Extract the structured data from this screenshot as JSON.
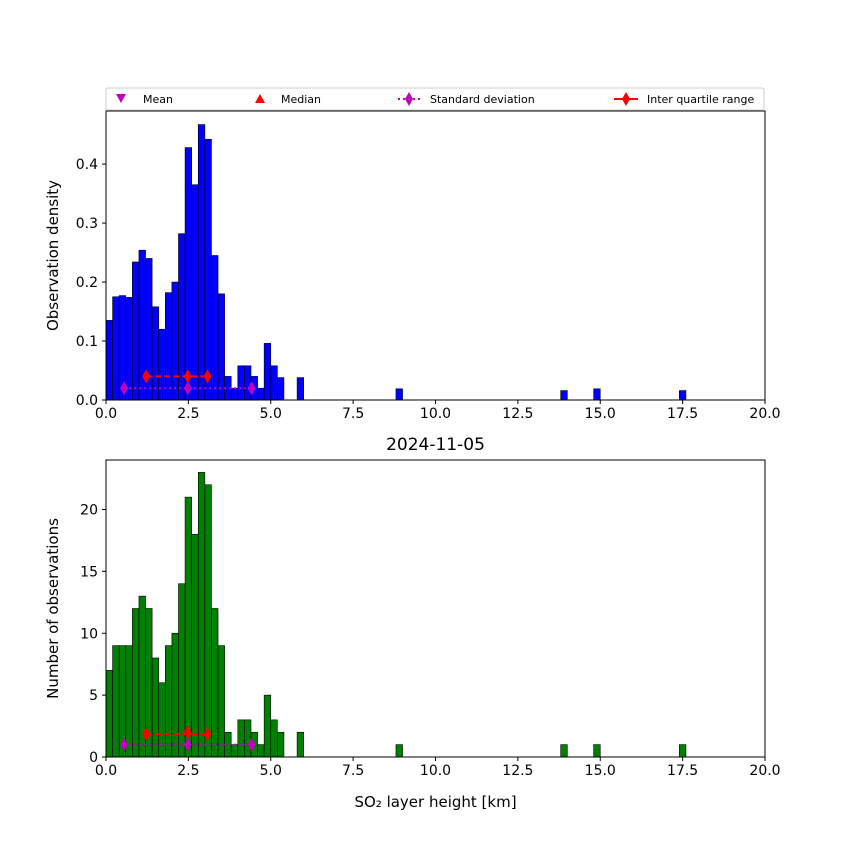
{
  "colors": {
    "density_bars": "#0000ff",
    "count_bars": "#008000",
    "mean": "#bf00bf",
    "median": "#ff0000",
    "std": "#bf00bf",
    "iqr": "#ff0000"
  },
  "legend": {
    "mean": "Mean",
    "median": "Median",
    "std": "Standard deviation",
    "iqr": "Inter quartile range"
  },
  "chart_data": [
    {
      "type": "bar",
      "title": "",
      "xlabel": "",
      "ylabel": "Observation density",
      "xlim": [
        0,
        20
      ],
      "ylim": [
        0,
        0.49
      ],
      "xticks": [
        "0.0",
        "2.5",
        "5.0",
        "7.5",
        "10.0",
        "12.5",
        "15.0",
        "17.5",
        "20.0"
      ],
      "yticks": [
        "0.0",
        "0.1",
        "0.2",
        "0.3",
        "0.4"
      ],
      "bin_width": 0.2,
      "bins": [
        [
          0.0,
          0.135
        ],
        [
          0.2,
          0.175
        ],
        [
          0.4,
          0.177
        ],
        [
          0.6,
          0.174
        ],
        [
          0.8,
          0.234
        ],
        [
          1.0,
          0.254
        ],
        [
          1.2,
          0.24
        ],
        [
          1.4,
          0.158
        ],
        [
          1.6,
          0.12
        ],
        [
          1.8,
          0.182
        ],
        [
          2.0,
          0.2
        ],
        [
          2.2,
          0.282
        ],
        [
          2.4,
          0.428
        ],
        [
          2.6,
          0.365
        ],
        [
          2.8,
          0.467
        ],
        [
          3.0,
          0.442
        ],
        [
          3.2,
          0.245
        ],
        [
          3.4,
          0.18
        ],
        [
          3.6,
          0.04
        ],
        [
          3.8,
          0.02
        ],
        [
          4.0,
          0.058
        ],
        [
          4.2,
          0.058
        ],
        [
          4.4,
          0.04
        ],
        [
          4.6,
          0.02
        ],
        [
          4.8,
          0.096
        ],
        [
          5.0,
          0.058
        ],
        [
          5.2,
          0.038
        ],
        [
          5.8,
          0.038
        ],
        [
          8.8,
          0.019
        ],
        [
          13.8,
          0.016
        ],
        [
          14.8,
          0.019
        ],
        [
          17.4,
          0.016
        ]
      ],
      "mean": {
        "x": 2.48,
        "y": 0.02
      },
      "median": {
        "x": 2.48,
        "y": 0.04
      },
      "std": {
        "low": 0.55,
        "high": 4.42,
        "y": 0.02
      },
      "iqr": {
        "low": 1.22,
        "high": 3.08,
        "y": 0.04
      }
    },
    {
      "type": "bar",
      "title": "2024-11-05",
      "xlabel": "SO₂ layer height [km]",
      "ylabel": "Number of observations",
      "xlim": [
        0,
        20
      ],
      "ylim": [
        0,
        24
      ],
      "xticks": [
        "0.0",
        "2.5",
        "5.0",
        "7.5",
        "10.0",
        "12.5",
        "15.0",
        "17.5",
        "20.0"
      ],
      "yticks": [
        "0",
        "5",
        "10",
        "15",
        "20"
      ],
      "bin_width": 0.2,
      "bins": [
        [
          0.0,
          7
        ],
        [
          0.2,
          9
        ],
        [
          0.4,
          9
        ],
        [
          0.6,
          9
        ],
        [
          0.8,
          12
        ],
        [
          1.0,
          13
        ],
        [
          1.2,
          12
        ],
        [
          1.4,
          8
        ],
        [
          1.6,
          6
        ],
        [
          1.8,
          9
        ],
        [
          2.0,
          10
        ],
        [
          2.2,
          14
        ],
        [
          2.4,
          21
        ],
        [
          2.6,
          18
        ],
        [
          2.8,
          23
        ],
        [
          3.0,
          22
        ],
        [
          3.2,
          12
        ],
        [
          3.4,
          9
        ],
        [
          3.6,
          2
        ],
        [
          3.8,
          1
        ],
        [
          4.0,
          3
        ],
        [
          4.2,
          3
        ],
        [
          4.4,
          2
        ],
        [
          4.6,
          1
        ],
        [
          4.8,
          5
        ],
        [
          5.0,
          3
        ],
        [
          5.2,
          2
        ],
        [
          5.8,
          2
        ],
        [
          8.8,
          1
        ],
        [
          13.8,
          1
        ],
        [
          14.8,
          1
        ],
        [
          17.4,
          1
        ]
      ],
      "mean": {
        "x": 2.48,
        "y": 1.0
      },
      "median": {
        "x": 2.48,
        "y": 2.0
      },
      "std": {
        "low": 0.55,
        "high": 4.42,
        "y": 1.0
      },
      "iqr": {
        "low": 1.22,
        "high": 3.08,
        "y": 1.85
      }
    }
  ]
}
